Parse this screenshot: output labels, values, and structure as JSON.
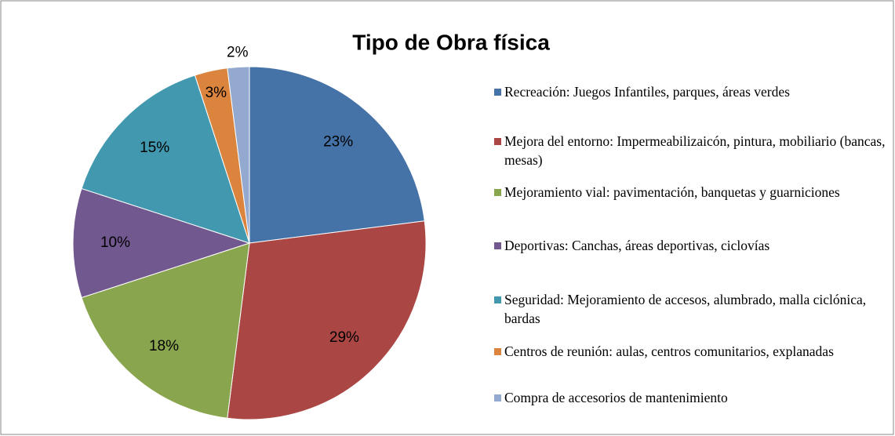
{
  "chart_data": {
    "type": "pie",
    "title": "Tipo de Obra física",
    "categories": [
      "Recreación: Juegos Infantiles, parques, áreas verdes",
      "Mejora del entorno: Impermeabilizaicón, pintura, mobiliario (bancas, mesas)",
      "Mejoramiento vial: pavimentación, banquetas y guarniciones",
      "Deportivas: Canchas, áreas deportivas, ciclovías",
      "Seguridad: Mejoramiento de accesos, alumbrado, malla ciclónica, bardas",
      "Centros de reunión: aulas, centros comunitarios, explanadas",
      "Compra de accesorios de mantenimiento"
    ],
    "values": [
      23,
      29,
      18,
      10,
      15,
      3,
      2
    ],
    "value_labels": [
      "23%",
      "29%",
      "18%",
      "10%",
      "15%",
      "3%",
      "2%"
    ],
    "colors": [
      "#4572a7",
      "#aa4643",
      "#89a54e",
      "#71588f",
      "#4198af",
      "#db843d",
      "#93a9cf"
    ],
    "legend": "right"
  }
}
